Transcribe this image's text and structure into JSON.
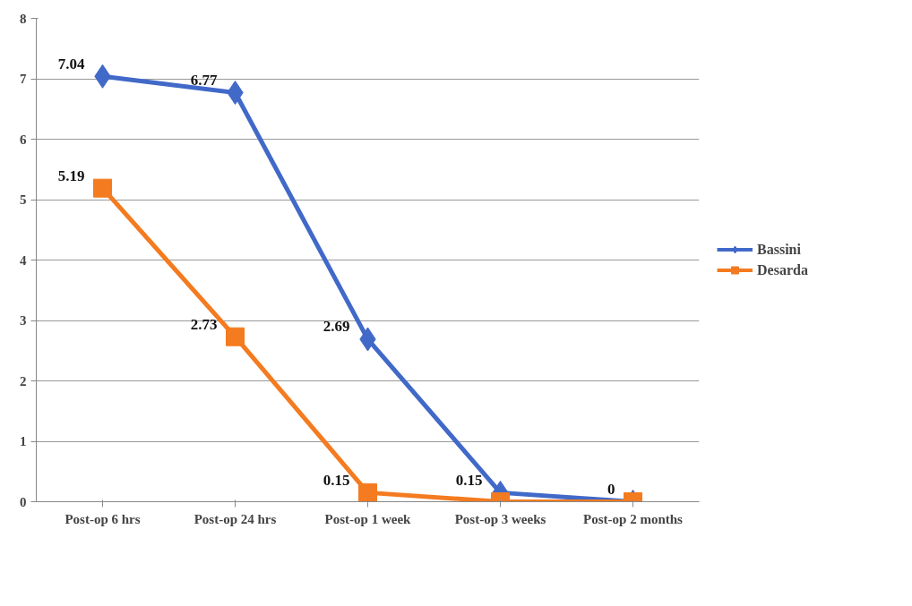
{
  "chart_data": {
    "type": "line",
    "categories": [
      "Post-op 6 hrs",
      "Post-op 24 hrs",
      "Post-op 1 week",
      "Post-op 3 weeks",
      "Post-op 2 months"
    ],
    "series": [
      {
        "name": "Bassini",
        "color": "#4169c8",
        "marker": "diamond",
        "values": [
          7.04,
          6.77,
          2.69,
          0.15,
          0
        ],
        "value_labels": [
          "7.04",
          "6.77",
          "2.69",
          "0.15",
          "0"
        ]
      },
      {
        "name": "Desarda",
        "color": "#f47b20",
        "marker": "square",
        "values": [
          5.19,
          2.73,
          0.15,
          0,
          0
        ],
        "value_labels": [
          "5.19",
          "2.73",
          "0.15",
          null,
          null
        ]
      }
    ],
    "ylim": [
      0,
      8
    ],
    "yticks": [
      0,
      1,
      2,
      3,
      4,
      5,
      6,
      7,
      8
    ],
    "grid": "y",
    "legend": "right",
    "line_style": "solid"
  }
}
